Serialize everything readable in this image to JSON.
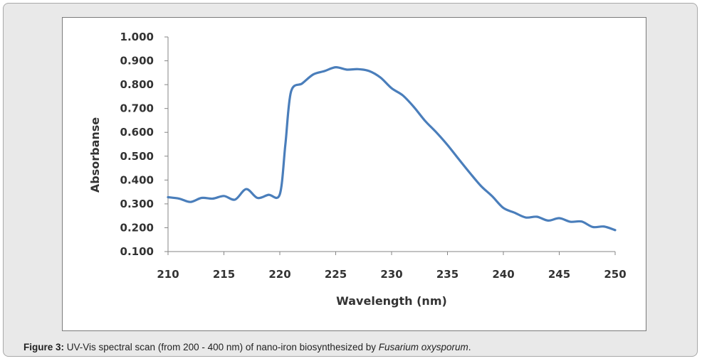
{
  "chart_data": {
    "type": "line",
    "title": "",
    "xlabel": "Wavelength (nm)",
    "ylabel": "Absorbanse",
    "xlim": [
      210,
      250
    ],
    "ylim": [
      0.1,
      1.0
    ],
    "x_ticks": [
      "210",
      "215",
      "220",
      "225",
      "230",
      "235",
      "240",
      "245",
      "250"
    ],
    "y_ticks": [
      "0.100",
      "0.200",
      "0.300",
      "0.400",
      "0.500",
      "0.600",
      "0.700",
      "0.800",
      "0.900",
      "1.000"
    ],
    "grid": false,
    "legend": "none",
    "series": [
      {
        "name": "Absorbance",
        "color": "#4a7ebb",
        "x": [
          210,
          211,
          212,
          213,
          214,
          215,
          216,
          217,
          218,
          219,
          220,
          220.5,
          221,
          222,
          223,
          224,
          225,
          226,
          227,
          228,
          229,
          230,
          231,
          232,
          233,
          234,
          235,
          236,
          237,
          238,
          239,
          240,
          241,
          242,
          243,
          244,
          245,
          246,
          247,
          248,
          249,
          250
        ],
        "y": [
          0.328,
          0.322,
          0.308,
          0.325,
          0.322,
          0.333,
          0.318,
          0.362,
          0.325,
          0.338,
          0.34,
          0.55,
          0.77,
          0.805,
          0.843,
          0.857,
          0.873,
          0.863,
          0.865,
          0.857,
          0.83,
          0.785,
          0.755,
          0.706,
          0.648,
          0.6,
          0.547,
          0.488,
          0.43,
          0.375,
          0.332,
          0.283,
          0.263,
          0.243,
          0.246,
          0.23,
          0.24,
          0.225,
          0.226,
          0.203,
          0.205,
          0.19
        ]
      }
    ]
  },
  "caption": {
    "label": "Figure 3:",
    "text_before": " UV-Vis spectral scan (from 200 - 400 nm) of nano-iron biosynthesized by ",
    "species": "Fusarium oxysporum",
    "text_after": "."
  }
}
